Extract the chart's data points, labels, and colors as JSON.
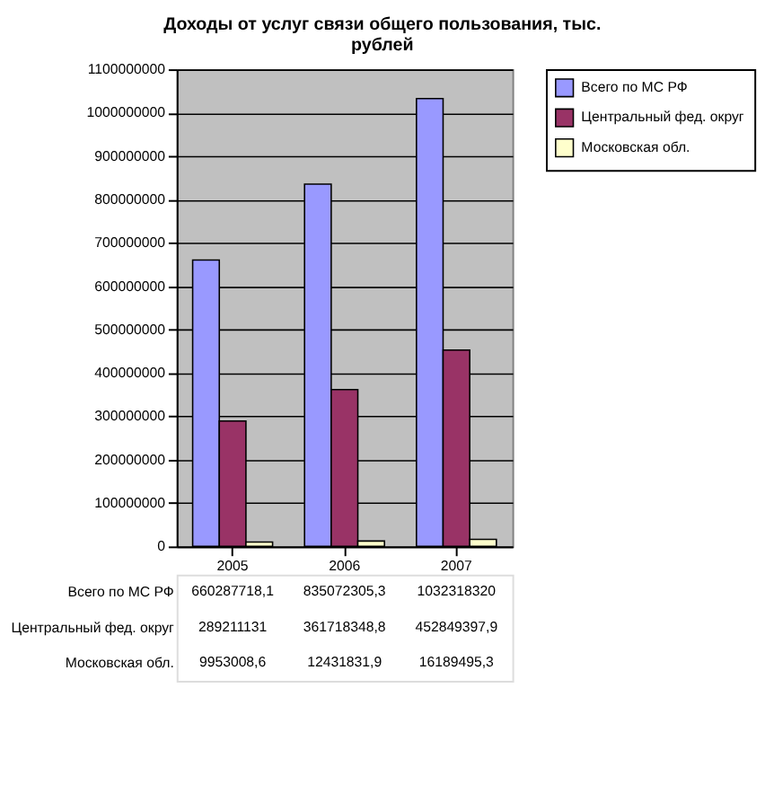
{
  "chart_data": {
    "type": "bar",
    "title": [
      "Доходы от услуг связи общего пользования, тыс.",
      "рублей"
    ],
    "categories": [
      "2005",
      "2006",
      "2007"
    ],
    "series": [
      {
        "name": "Всего по МС РФ",
        "color": "#9999ff",
        "values": [
          660287718.1,
          835072305.3,
          1032318320
        ],
        "value_labels": [
          "660287718,1",
          "835072305,3",
          "1032318320"
        ]
      },
      {
        "name": "Центральный фед. округ",
        "color": "#993366",
        "values": [
          289211131,
          361718348.8,
          452849397.9
        ],
        "value_labels": [
          "289211131",
          "361718348,8",
          "452849397,9"
        ]
      },
      {
        "name": "Московская обл.",
        "color": "#ffffcc",
        "values": [
          9953008.6,
          12431831.9,
          16189495.3
        ],
        "value_labels": [
          "9953008,6",
          "12431831,9",
          "16189495,3"
        ]
      }
    ],
    "ylim": [
      0,
      1100000000
    ],
    "yticks": [
      0,
      100000000,
      200000000,
      300000000,
      400000000,
      500000000,
      600000000,
      700000000,
      800000000,
      900000000,
      1000000000,
      1100000000
    ],
    "grid": "y",
    "legend": "right"
  }
}
